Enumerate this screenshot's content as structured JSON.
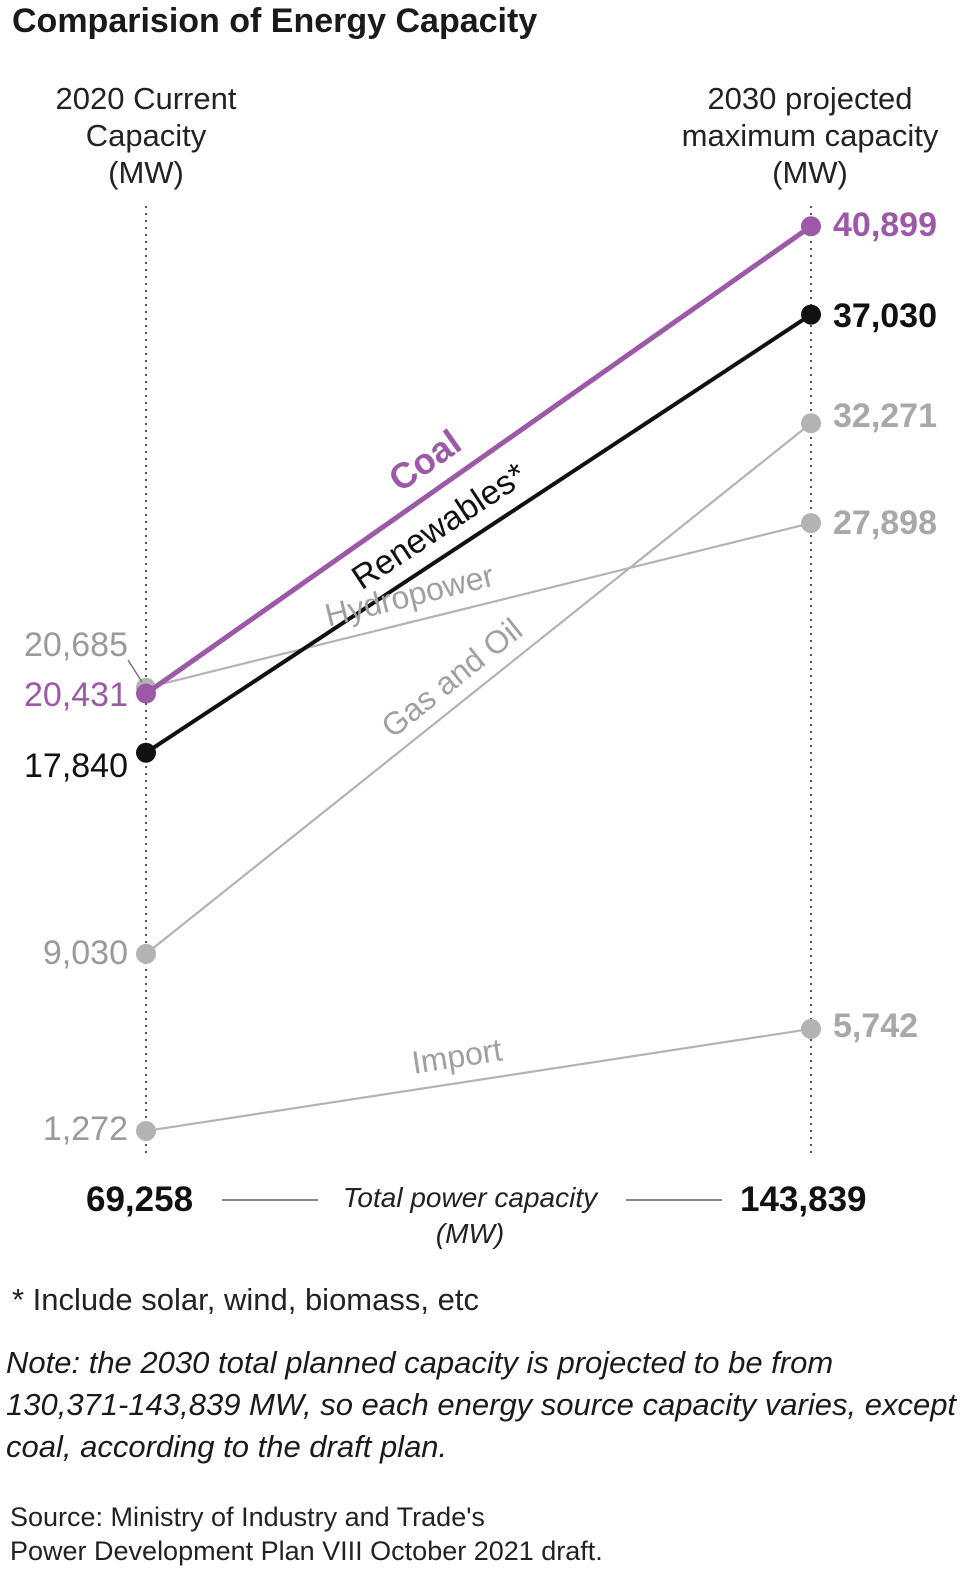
{
  "title": "Comparision of Energy Capacity",
  "columns": {
    "left": [
      "2020 Current",
      "Capacity",
      "(MW)"
    ],
    "right": [
      "2030 projected",
      "maximum capacity",
      "(MW)"
    ]
  },
  "totals": {
    "left": "69,258",
    "right": "143,839",
    "label": [
      "Total power capacity",
      "(MW)"
    ]
  },
  "footnote": "* Include solar, wind, biomass, etc",
  "note": [
    "Note: the 2030 total planned capacity is projected to be from",
    "130,371-143,839 MW, so each energy source capacity varies, except",
    "coal, according to the draft plan."
  ],
  "source": [
    "Source: Ministry of Industry and Trade's",
    "Power Development Plan VIII October 2021 draft."
  ],
  "colors": {
    "coal": "#9b59a6",
    "renewables": "#111111",
    "grey": "#b3b3b3"
  },
  "chart_data": {
    "type": "line",
    "title": "Comparision of Energy Capacity",
    "x": [
      "2020",
      "2030"
    ],
    "series": [
      {
        "name": "Coal",
        "values": [
          20431,
          40899
        ],
        "labels": [
          "20,431",
          "40,899"
        ],
        "color": "#9b59a6",
        "emphasis": "bold"
      },
      {
        "name": "Renewables*",
        "values": [
          17840,
          37030
        ],
        "labels": [
          "17,840",
          "37,030"
        ],
        "color": "#111111",
        "emphasis": "bold"
      },
      {
        "name": "Gas and Oil",
        "values": [
          9030,
          32271
        ],
        "labels": [
          "9,030",
          "32,271"
        ],
        "color": "#b3b3b3",
        "emphasis": "normal"
      },
      {
        "name": "Hydropower",
        "values": [
          20685,
          27898
        ],
        "labels": [
          "20,685",
          "27,898"
        ],
        "color": "#b3b3b3",
        "emphasis": "normal"
      },
      {
        "name": "Import",
        "values": [
          1272,
          5742
        ],
        "labels": [
          "1,272",
          "5,742"
        ],
        "color": "#b3b3b3",
        "emphasis": "normal"
      }
    ],
    "ylim": [
      0,
      42000
    ],
    "grid": false
  }
}
